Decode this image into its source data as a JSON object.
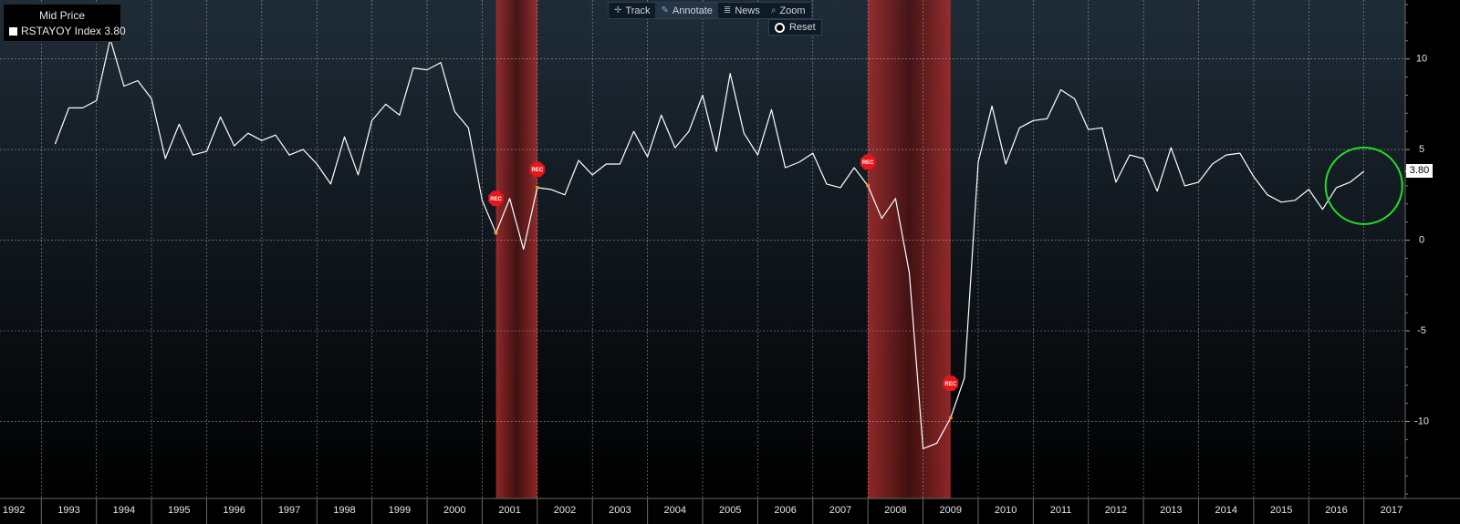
{
  "legend": {
    "title": "Mid Price",
    "series_label": "RSTAYOY Index 3.80"
  },
  "toolbar": {
    "track": "Track",
    "annotate": "Annotate",
    "news": "News",
    "zoom": "Zoom",
    "reset": "Reset"
  },
  "last_value_label": "3.80",
  "event_marker_label": "REC",
  "colors": {
    "background": "#000000",
    "line": "#ffffff",
    "recession": "#8b1a1a",
    "highlight_circle": "#22dd22",
    "marker": "#e8161b"
  },
  "icons": {
    "track": "crosshair-icon",
    "annotate": "pencil-icon",
    "news": "news-icon",
    "zoom": "magnifier-icon",
    "reset": "radio-icon"
  },
  "chart_data": {
    "type": "line",
    "series": [
      {
        "name": "RSTAYOY Index",
        "values": [
          [
            1992.75,
            5.3
          ],
          [
            1993.0,
            7.3
          ],
          [
            1993.25,
            7.3
          ],
          [
            1993.5,
            7.7
          ],
          [
            1993.75,
            11.1
          ],
          [
            1994.0,
            8.5
          ],
          [
            1994.25,
            8.8
          ],
          [
            1994.5,
            7.8
          ],
          [
            1994.75,
            4.5
          ],
          [
            1995.0,
            6.4
          ],
          [
            1995.25,
            4.7
          ],
          [
            1995.5,
            4.9
          ],
          [
            1995.75,
            6.8
          ],
          [
            1996.0,
            5.2
          ],
          [
            1996.25,
            5.9
          ],
          [
            1996.5,
            5.5
          ],
          [
            1996.75,
            5.8
          ],
          [
            1997.0,
            4.7
          ],
          [
            1997.25,
            5.0
          ],
          [
            1997.5,
            4.2
          ],
          [
            1997.75,
            3.1
          ],
          [
            1998.0,
            5.7
          ],
          [
            1998.25,
            3.6
          ],
          [
            1998.5,
            6.6
          ],
          [
            1998.75,
            7.5
          ],
          [
            1999.0,
            6.9
          ],
          [
            1999.25,
            9.5
          ],
          [
            1999.5,
            9.4
          ],
          [
            1999.75,
            9.8
          ],
          [
            2000.0,
            7.1
          ],
          [
            2000.25,
            6.2
          ],
          [
            2000.5,
            2.2
          ],
          [
            2000.75,
            0.4
          ],
          [
            2001.0,
            2.3
          ],
          [
            2001.25,
            -0.5
          ],
          [
            2001.5,
            2.9
          ],
          [
            2001.75,
            2.8
          ],
          [
            2002.0,
            2.5
          ],
          [
            2002.25,
            4.4
          ],
          [
            2002.5,
            3.6
          ],
          [
            2002.75,
            4.2
          ],
          [
            2003.0,
            4.2
          ],
          [
            2003.25,
            6.0
          ],
          [
            2003.5,
            4.6
          ],
          [
            2003.75,
            6.9
          ],
          [
            2004.0,
            5.1
          ],
          [
            2004.25,
            6.0
          ],
          [
            2004.5,
            8.0
          ],
          [
            2004.75,
            4.9
          ],
          [
            2005.0,
            9.2
          ],
          [
            2005.25,
            5.9
          ],
          [
            2005.5,
            4.7
          ],
          [
            2005.75,
            7.2
          ],
          [
            2006.0,
            4.0
          ],
          [
            2006.25,
            4.3
          ],
          [
            2006.5,
            4.8
          ],
          [
            2006.75,
            3.1
          ],
          [
            2007.0,
            2.9
          ],
          [
            2007.25,
            4.0
          ],
          [
            2007.5,
            3.0
          ],
          [
            2007.75,
            1.2
          ],
          [
            2008.0,
            2.3
          ],
          [
            2008.25,
            -1.8
          ],
          [
            2008.5,
            -11.5
          ],
          [
            2008.75,
            -11.2
          ],
          [
            2009.0,
            -9.8
          ],
          [
            2009.25,
            -7.6
          ],
          [
            2009.5,
            4.3
          ],
          [
            2009.75,
            7.4
          ],
          [
            2010.0,
            4.2
          ],
          [
            2010.25,
            6.2
          ],
          [
            2010.5,
            6.6
          ],
          [
            2010.75,
            6.7
          ],
          [
            2011.0,
            8.3
          ],
          [
            2011.25,
            7.8
          ],
          [
            2011.5,
            6.1
          ],
          [
            2011.75,
            6.2
          ],
          [
            2012.0,
            3.2
          ],
          [
            2012.25,
            4.7
          ],
          [
            2012.5,
            4.5
          ],
          [
            2012.75,
            2.7
          ],
          [
            2013.0,
            5.1
          ],
          [
            2013.25,
            3.0
          ],
          [
            2013.5,
            3.2
          ],
          [
            2013.75,
            4.2
          ],
          [
            2014.0,
            4.7
          ],
          [
            2014.25,
            4.8
          ],
          [
            2014.5,
            3.5
          ],
          [
            2014.75,
            2.5
          ],
          [
            2015.0,
            2.1
          ],
          [
            2015.25,
            2.2
          ],
          [
            2015.5,
            2.8
          ],
          [
            2015.75,
            1.7
          ],
          [
            2016.0,
            2.9
          ],
          [
            2016.25,
            3.2
          ],
          [
            2016.5,
            3.8
          ]
        ]
      }
    ],
    "recession_periods": [
      [
        2000.75,
        2001.5
      ],
      [
        2007.5,
        2009.0
      ]
    ],
    "rec_markers": [
      [
        2000.75,
        2.3
      ],
      [
        2001.5,
        3.9
      ],
      [
        2007.5,
        4.3
      ],
      [
        2009.0,
        -7.9
      ]
    ],
    "highlight_circle_at": [
      2016.5,
      3.0
    ],
    "x_ticks": [
      "1992",
      "1993",
      "1994",
      "1995",
      "1996",
      "1997",
      "1998",
      "1999",
      "2000",
      "2001",
      "2002",
      "2003",
      "2004",
      "2005",
      "2006",
      "2007",
      "2008",
      "2009",
      "2010",
      "2011",
      "2012",
      "2013",
      "2014",
      "2015",
      "2016",
      "2017"
    ],
    "y_ticks": [
      10,
      5,
      0,
      -5,
      -10
    ],
    "y_tick_labels": [
      "10",
      "5",
      "0",
      "-5",
      "-10"
    ],
    "xlim": [
      1991.75,
      2017.25
    ],
    "ylim": [
      -14.25,
      13.25
    ],
    "xlabel": "",
    "ylabel": "",
    "grid": true,
    "legend_position": "top-left"
  }
}
